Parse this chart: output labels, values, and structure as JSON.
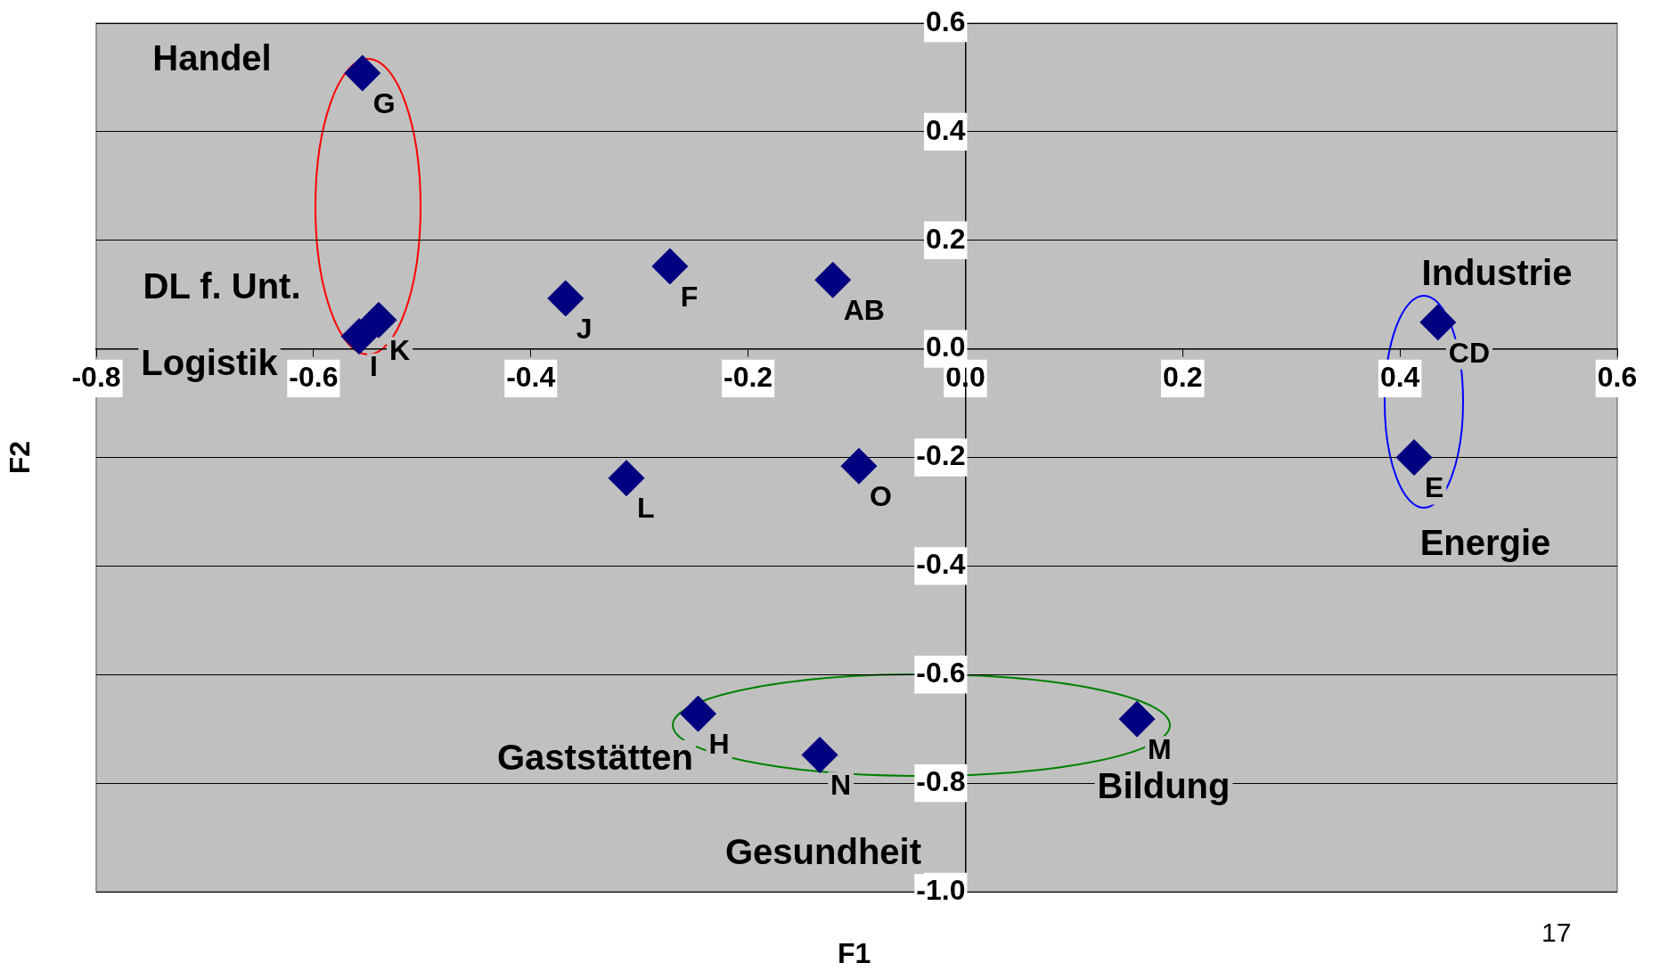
{
  "chart_data": {
    "type": "scatter",
    "xlabel": "F1",
    "ylabel": "F2",
    "x": [
      -0.555,
      -0.54,
      -0.558,
      -0.368,
      -0.272,
      -0.122,
      0.435,
      0.413,
      -0.312,
      -0.098,
      -0.246,
      -0.134,
      0.158
    ],
    "values": [
      0.508,
      0.053,
      0.023,
      0.093,
      0.152,
      0.127,
      0.049,
      -0.2,
      -0.238,
      -0.216,
      -0.672,
      -0.748,
      -0.682
    ],
    "value_labels": [
      "G",
      "K",
      "I",
      "J",
      "F",
      "AB",
      "CD",
      "E",
      "L",
      "O",
      "H",
      "N",
      "M"
    ],
    "color": "#000080",
    "marker": "diamond",
    "xlim": [
      -0.8,
      0.6
    ],
    "xticks": [
      -0.8,
      -0.6,
      -0.4,
      -0.2,
      {
        "value": 0,
        "label": "0.0"
      },
      0.2,
      0.4,
      0.6
    ],
    "ylim": [
      -1,
      0.6
    ],
    "yticks": [
      {
        "value": -1,
        "label": "-1.0"
      },
      -0.8,
      -0.6,
      -0.4,
      -0.2,
      {
        "value": 0,
        "label": "0.0"
      },
      0.2,
      0.4,
      0.6
    ],
    "grid": "y",
    "legend": false,
    "annotations": [
      "Handel",
      "DL f. Unt.",
      "Logistik",
      "Industrie",
      "Energie",
      "Gaststätten",
      "Bildung",
      "Gesundheit",
      "17"
    ]
  }
}
